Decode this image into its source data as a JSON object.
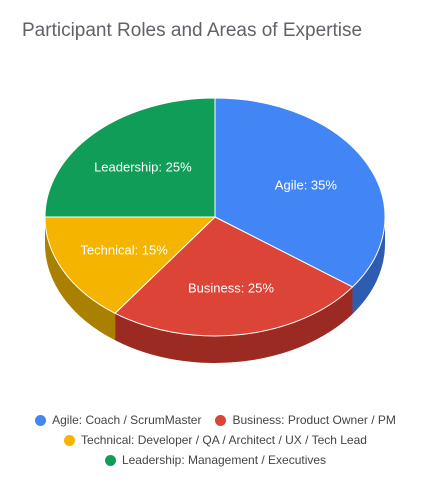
{
  "chart_data": {
    "type": "pie",
    "title": "Participant Roles and Areas of Expertise",
    "slices": [
      {
        "label": "Agile",
        "legend": "Agile: Coach / ScrumMaster",
        "value": 35,
        "display": "Agile: 35%",
        "color": "#4285f4",
        "side_color": "#2e5cb0"
      },
      {
        "label": "Business",
        "legend": "Business: Product Owner / PM",
        "value": 25,
        "display": "Business: 25%",
        "color": "#db4437",
        "side_color": "#9a2a22"
      },
      {
        "label": "Technical",
        "legend": "Technical: Developer / QA / Architect / UX / Tech Lead",
        "value": 15,
        "display": "Technical: 15%",
        "color": "#f4b400",
        "side_color": "#aa8000"
      },
      {
        "label": "Leadership",
        "legend": "Leadership: Management / Executives",
        "value": 25,
        "display": "Leadership: 25%",
        "color": "#0f9d58",
        "side_color": "#0a6b3c"
      }
    ],
    "legend_position": "bottom",
    "style": "3d"
  }
}
